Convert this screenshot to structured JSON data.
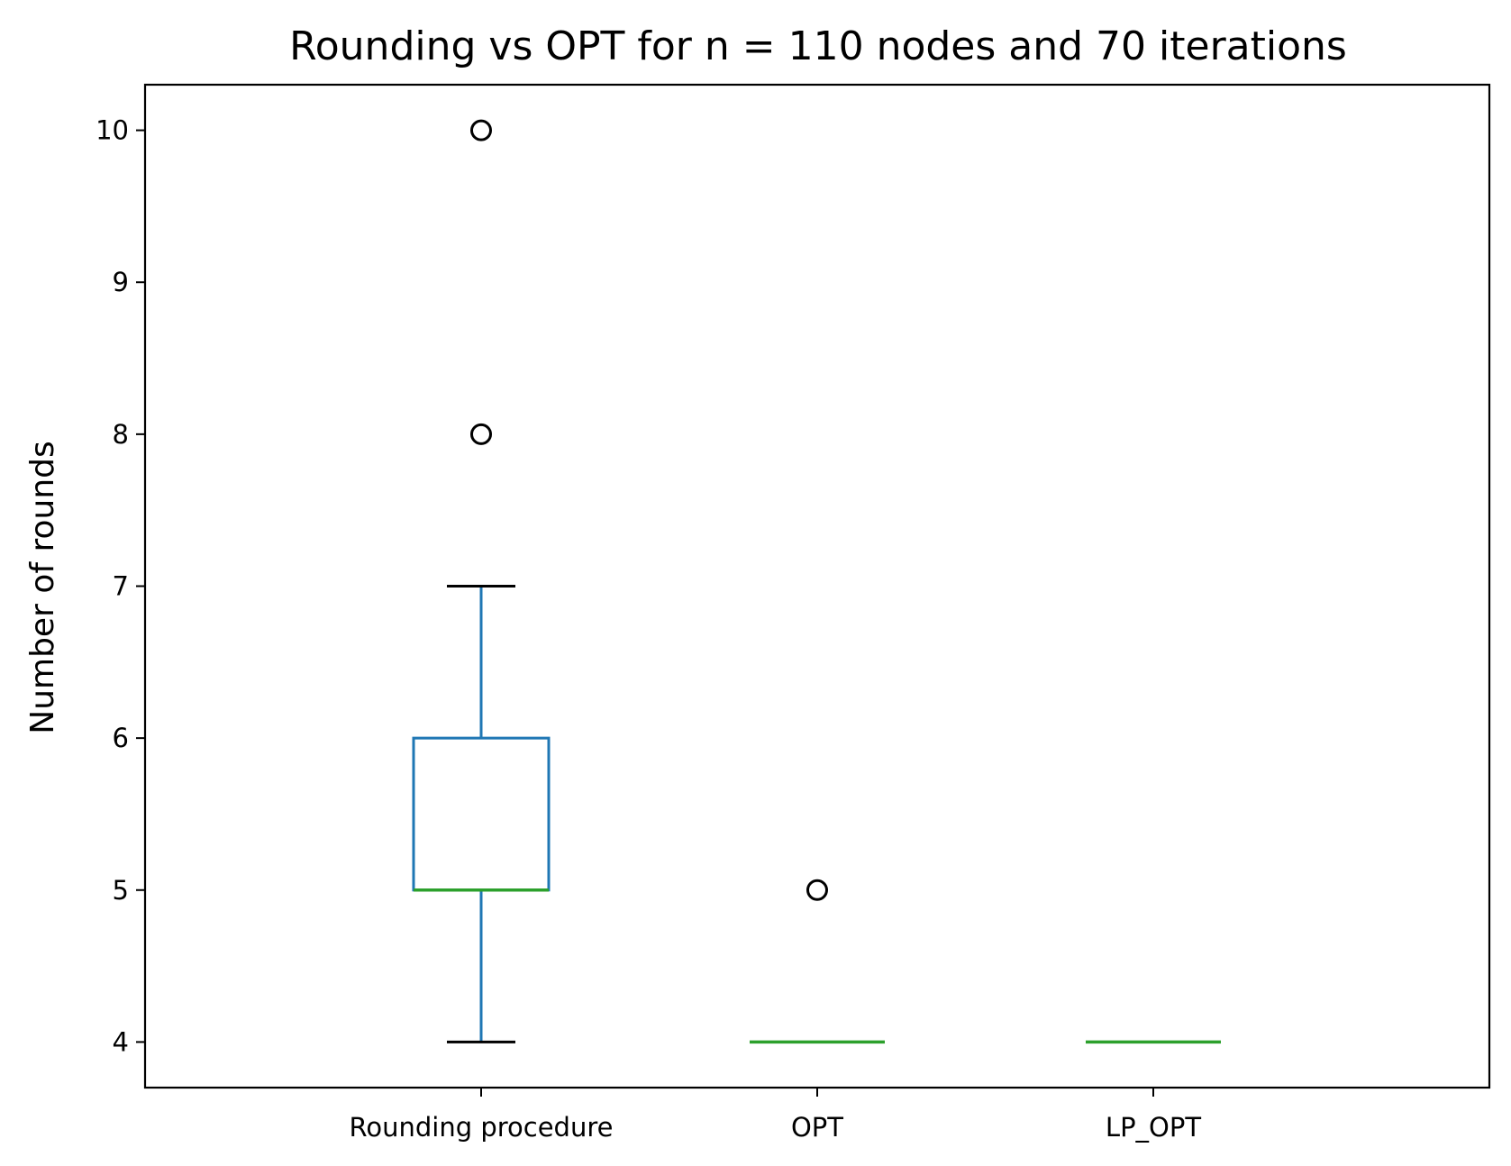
{
  "chart_data": {
    "type": "box",
    "title": "Rounding vs OPT for n = 110 nodes and 70 iterations",
    "xlabel": "",
    "ylabel": "Number of rounds",
    "ylim": [
      3.7,
      10.3
    ],
    "yticks": [
      4,
      5,
      6,
      7,
      8,
      9,
      10
    ],
    "grid": false,
    "categories": [
      "Rounding procedure",
      "OPT",
      "LP_OPT"
    ],
    "boxes": [
      {
        "category": "Rounding procedure",
        "whisker_low": 4,
        "q1": 5,
        "median": 5,
        "q3": 6,
        "whisker_high": 7,
        "outliers": [
          8,
          10
        ]
      },
      {
        "category": "OPT",
        "whisker_low": 4,
        "q1": 4,
        "median": 4,
        "q3": 4,
        "whisker_high": 4,
        "outliers": [
          5
        ]
      },
      {
        "category": "LP_OPT",
        "whisker_low": 4,
        "q1": 4,
        "median": 4,
        "q3": 4,
        "whisker_high": 4,
        "outliers": []
      }
    ],
    "colors": {
      "box": "#1f77b4",
      "median": "#2ca02c",
      "whisker_cap": "#000000",
      "outlier": "#000000"
    }
  }
}
